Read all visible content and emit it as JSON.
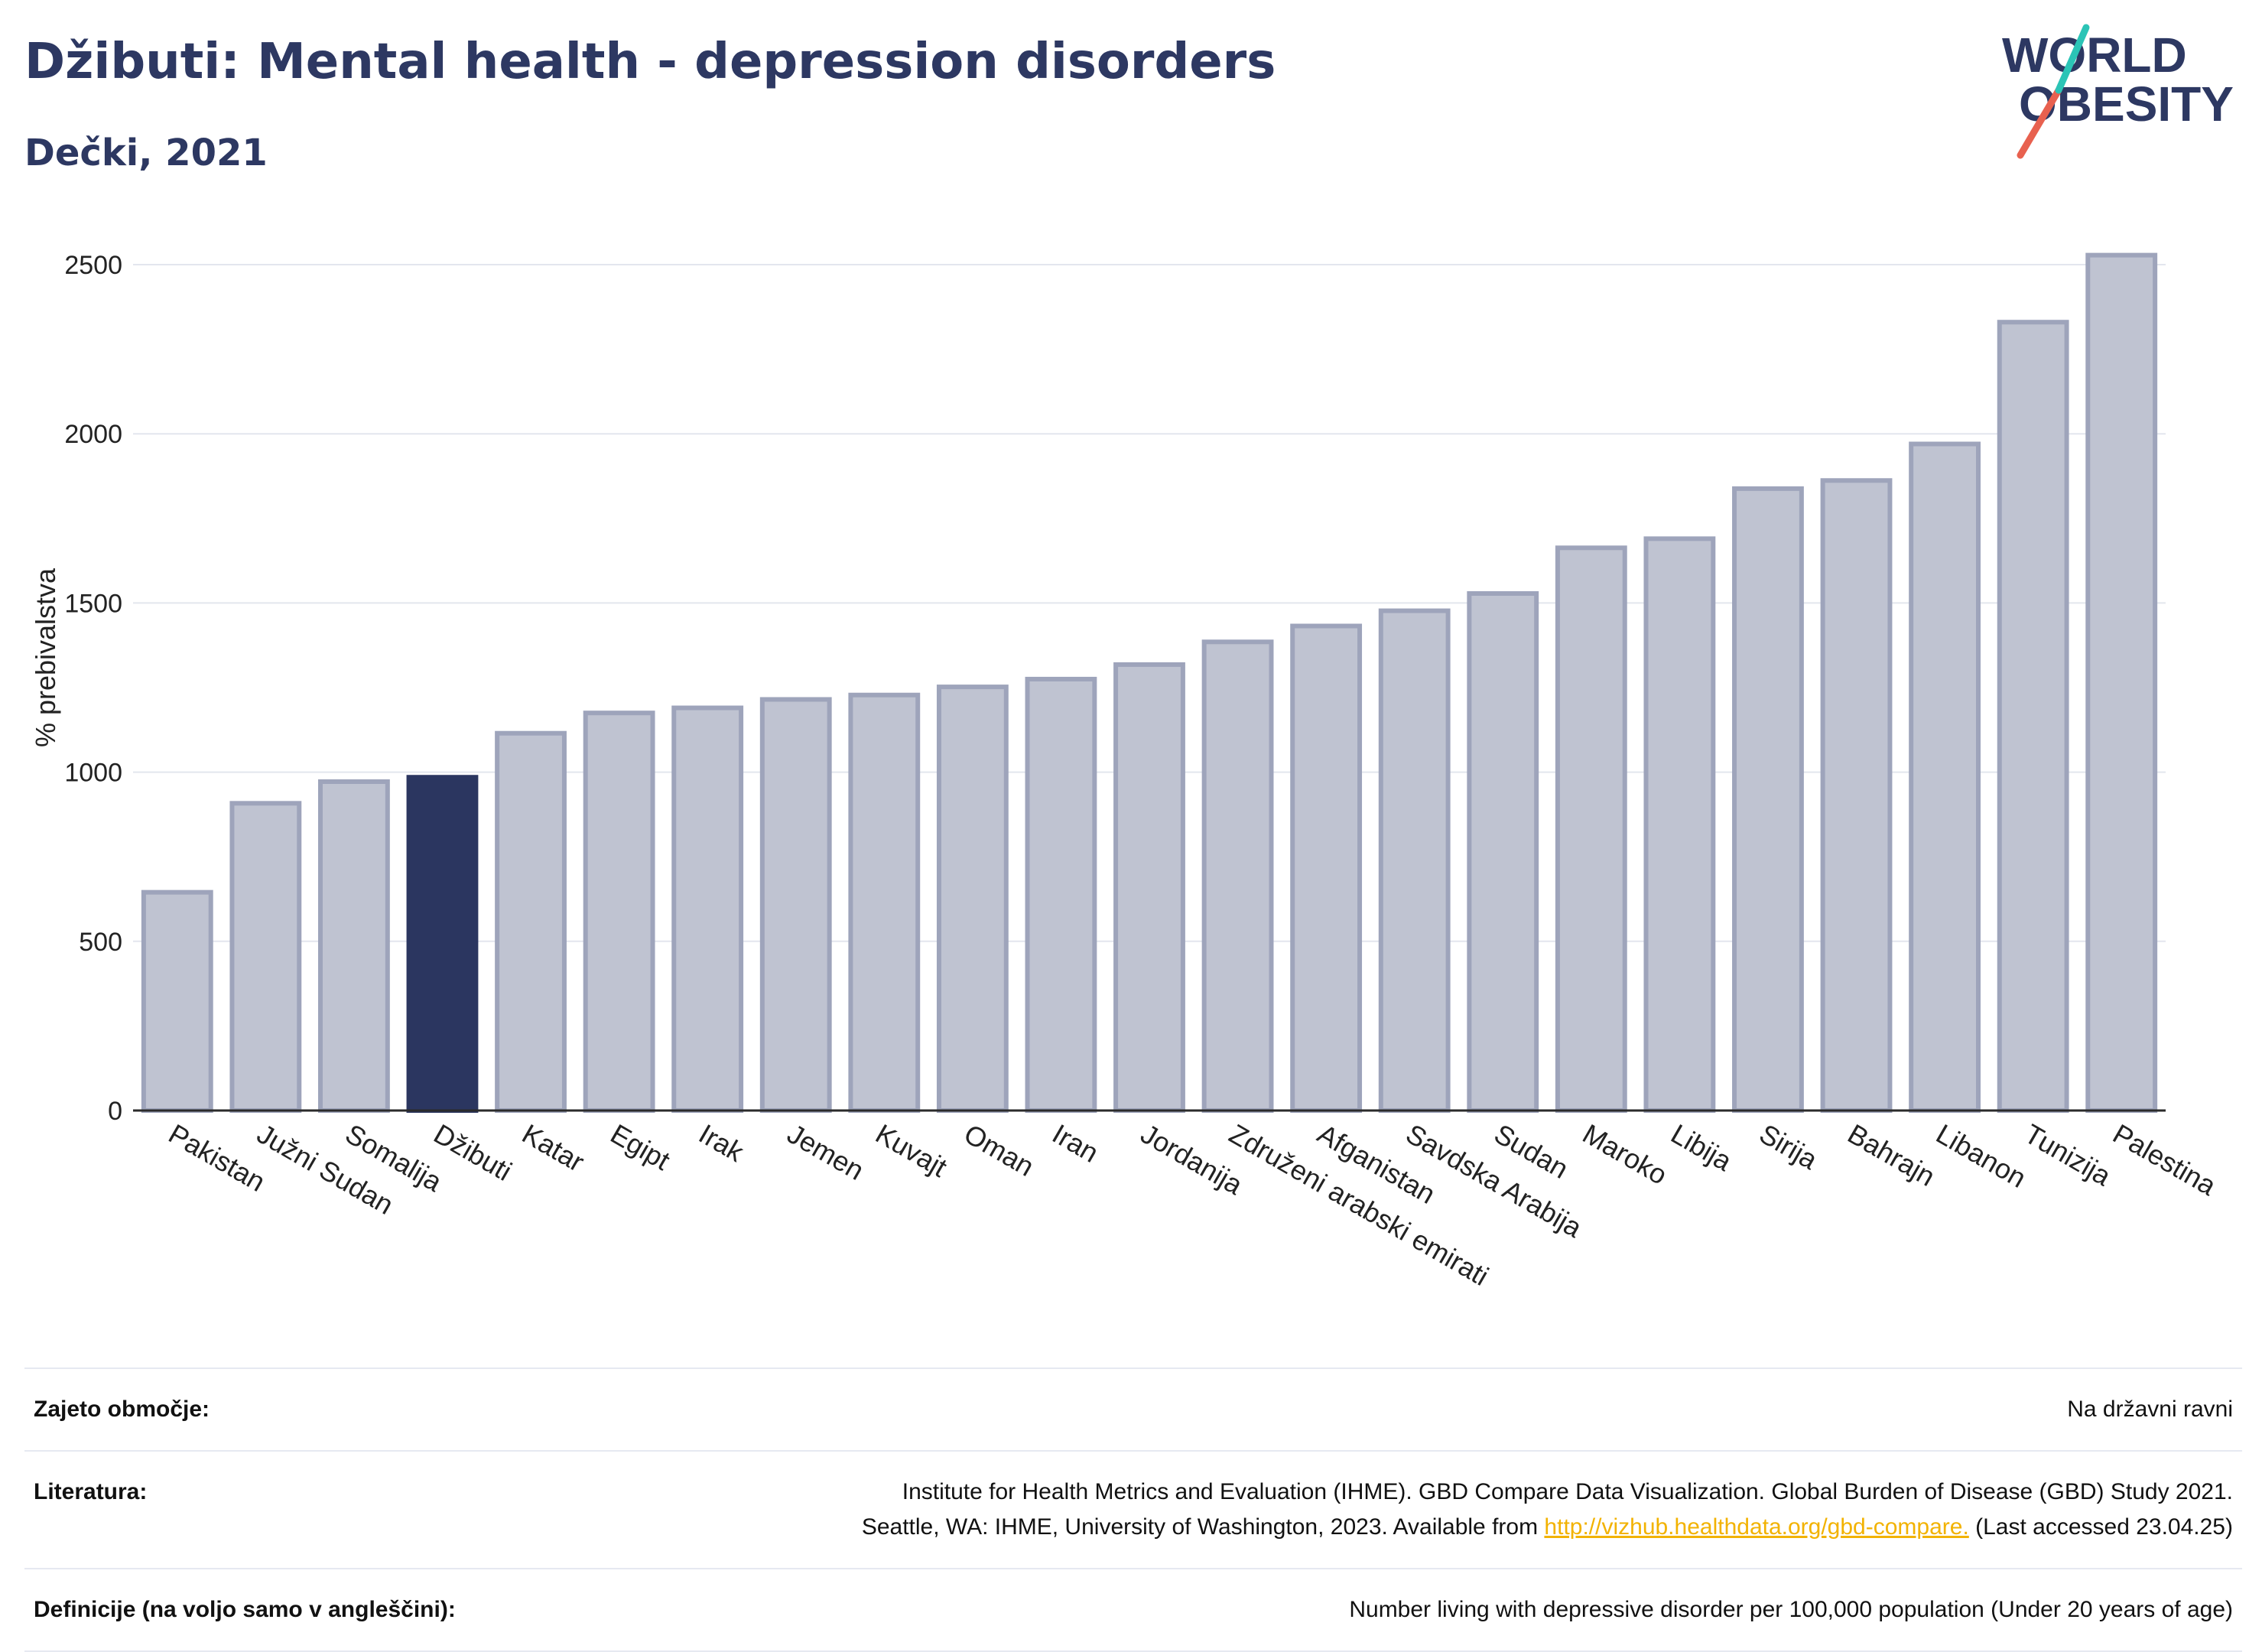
{
  "title": "Džibuti: Mental health - depression disorders",
  "subtitle": "Dečki, 2021",
  "logo": {
    "line1": "WORLD",
    "line2": "OBESITY",
    "colors": {
      "text": "#2d3862",
      "slash_red": "#e8614f",
      "slash_teal": "#2bc4b6"
    }
  },
  "colors": {
    "bar": "#bfc3d1",
    "bar_border": "#9ea4bb",
    "highlight": "#2b3660",
    "grid": "#e3e6ee",
    "axis": "#2b2b2b"
  },
  "chart_data": {
    "type": "bar",
    "ylabel": "% prebivalstva",
    "xlabel": "",
    "ylim": [
      0,
      2600
    ],
    "yticks": [
      0,
      500,
      1000,
      1500,
      2000,
      2500
    ],
    "grid": true,
    "highlight": "Džibuti",
    "categories": [
      "Pakistan",
      "Južni Sudan",
      "Somalija",
      "Džibuti",
      "Katar",
      "Egipt",
      "Irak",
      "Jemen",
      "Kuvajt",
      "Oman",
      "Iran",
      "Jordanija",
      "Združeni arabski emirati",
      "Afganistan",
      "Savdska Arabija",
      "Sudan",
      "Maroko",
      "Libija",
      "Sirija",
      "Bahrajn",
      "Libanon",
      "Tunizija",
      "Palestina"
    ],
    "values": [
      645,
      908,
      972,
      985,
      1115,
      1175,
      1190,
      1215,
      1228,
      1252,
      1275,
      1318,
      1385,
      1432,
      1477,
      1528,
      1663,
      1690,
      1838,
      1862,
      1970,
      2330,
      2528
    ]
  },
  "footer": {
    "rows": [
      {
        "label": "Zajeto območje:",
        "value": "Na državni ravni"
      },
      {
        "label": "Literatura:",
        "value_line1": "Institute for Health Metrics and Evaluation (IHME). GBD Compare Data Visualization. Global Burden of Disease (GBD) Study 2021.",
        "value_line2_pre": "Seattle, WA: IHME, University of Washington, 2023. Available from ",
        "value_link": "http://vizhub.healthdata.org/gbd-compare.",
        "value_line2_post": " (Last accessed 23.04.25)"
      },
      {
        "label": "Definicije (na voljo samo v angleščini):",
        "value": "Number living with depressive disorder per 100,000 population (Under 20 years of age)"
      }
    ]
  }
}
